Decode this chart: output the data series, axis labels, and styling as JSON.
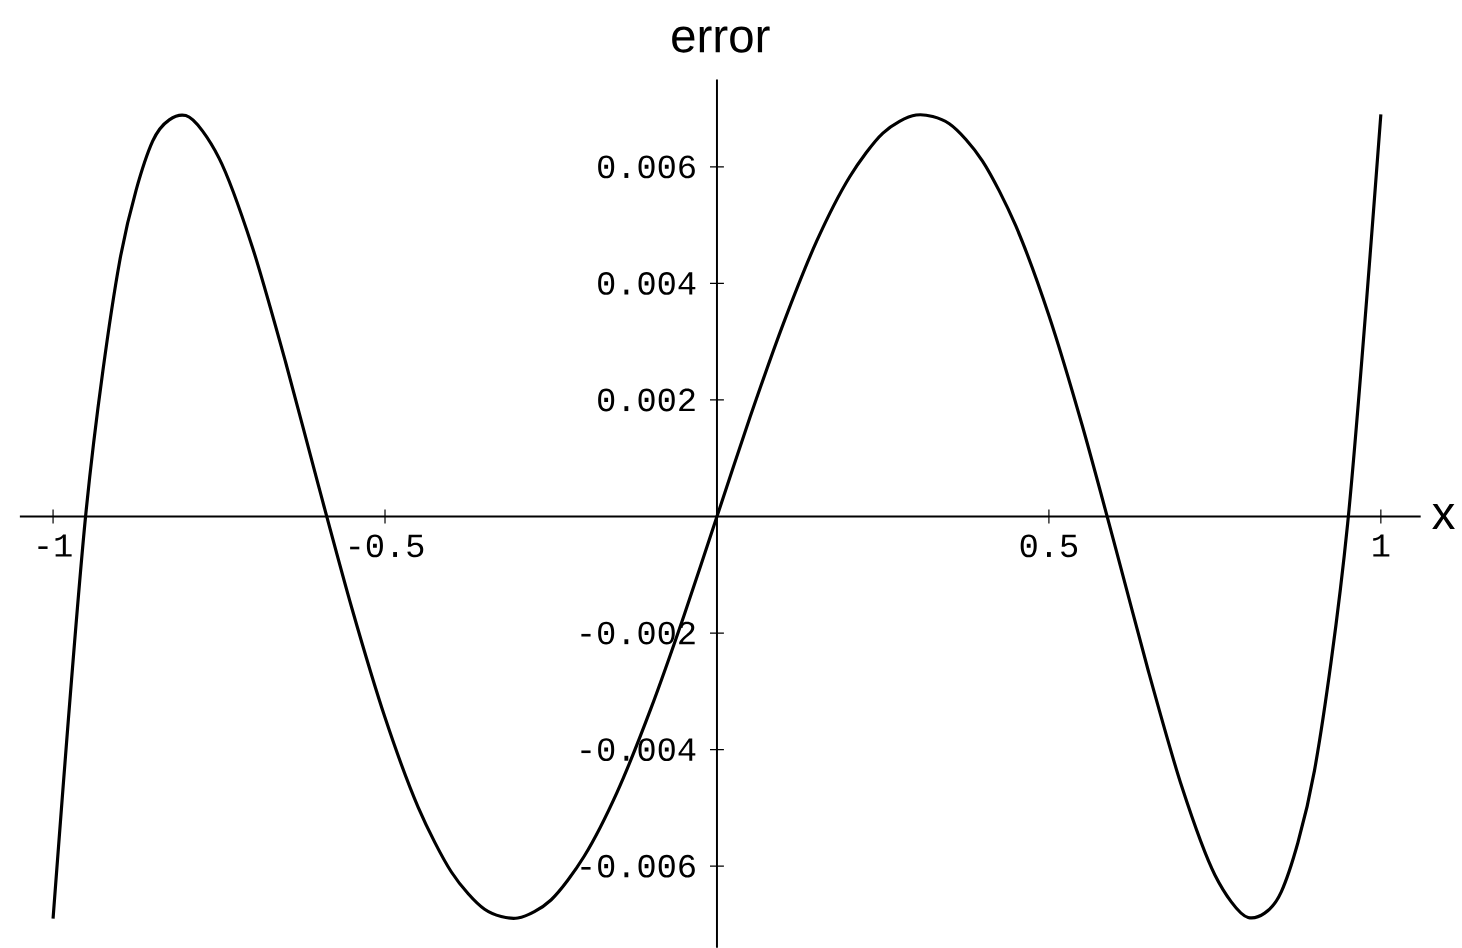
{
  "chart_data": {
    "type": "line",
    "title": "error",
    "xlabel": "x",
    "x": [
      -1,
      -0.95,
      -0.9,
      -0.85,
      -0.8,
      -0.75,
      -0.7,
      -0.65,
      -0.6,
      -0.55,
      -0.5,
      -0.45,
      -0.4,
      -0.35,
      -0.3,
      -0.25,
      -0.2,
      -0.15,
      -0.1,
      -0.05,
      0,
      0.05,
      0.1,
      0.15,
      0.2,
      0.25,
      0.3,
      0.35,
      0.4,
      0.45,
      0.5,
      0.55,
      0.6,
      0.65,
      0.7,
      0.75,
      0.8,
      0.85,
      0.9,
      0.95,
      1
    ],
    "series": [
      {
        "color": "#000000",
        "values": [
          -0.0069,
          0.00012,
          0.00436,
          0.00644,
          0.00688,
          0.00615,
          0.00463,
          0.00266,
          0.00052,
          -0.00157,
          -0.00345,
          -0.00499,
          -0.0061,
          -0.00674,
          -0.00689,
          -0.00658,
          -0.00583,
          -0.00472,
          -0.00331,
          -0.00171,
          0,
          0.00171,
          0.00331,
          0.00472,
          0.00583,
          0.00658,
          0.00689,
          0.00674,
          0.0061,
          0.00499,
          0.00345,
          0.00157,
          -0.00052,
          -0.00266,
          -0.00463,
          -0.00615,
          -0.00688,
          -0.00644,
          -0.00436,
          -0.00012,
          0.0069
        ]
      }
    ],
    "xlim": [
      -1.05,
      1.06
    ],
    "ylim": [
      -0.0074,
      0.0075
    ],
    "xticks": [
      -1,
      -0.5,
      0.5,
      1
    ],
    "yticks": [
      -0.006,
      -0.004,
      -0.002,
      0.002,
      0.004,
      0.006
    ],
    "grid": false,
    "marker": "none",
    "line_style": "solid"
  }
}
